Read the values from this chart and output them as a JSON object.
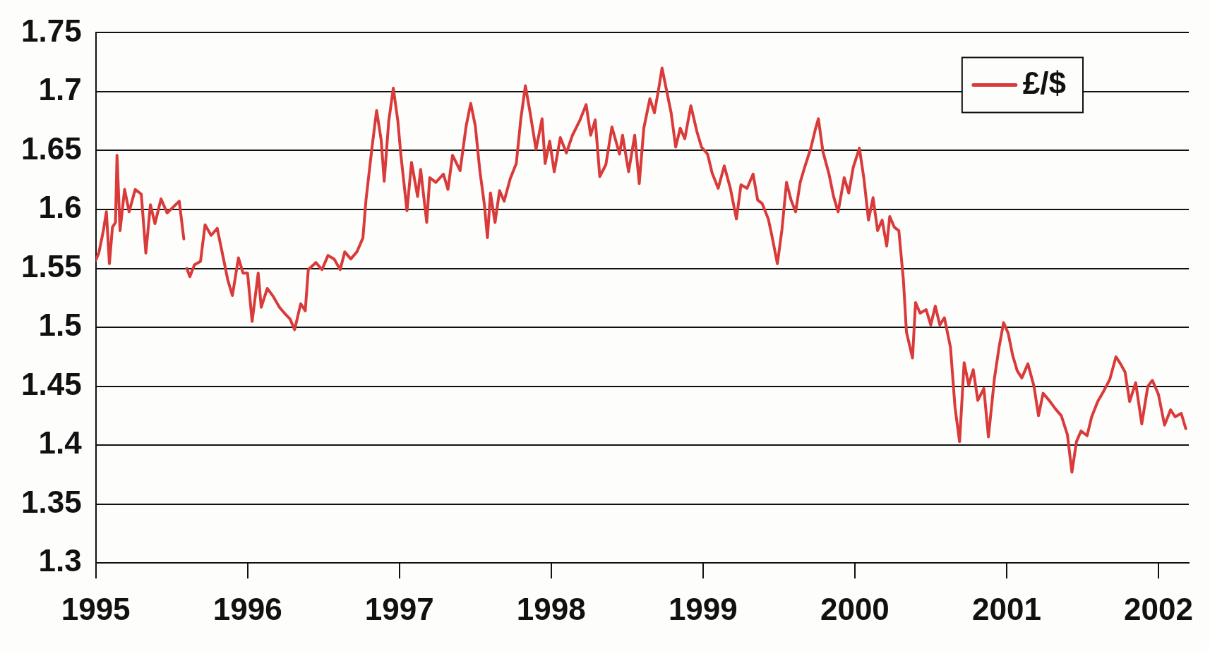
{
  "chart_data": {
    "type": "line",
    "legend": "top right",
    "grid": "y",
    "marker": "none",
    "line_style": "solid",
    "xlim": [
      1995,
      2002.2
    ],
    "xticks": [
      1995,
      1996,
      1997,
      1998,
      1999,
      2000,
      2001,
      2002
    ],
    "ylim": [
      1.3,
      1.75
    ],
    "yticks": [
      1.3,
      1.35,
      1.4,
      1.45,
      1.5,
      1.55,
      1.6,
      1.65,
      1.7,
      1.75
    ],
    "series": [
      {
        "name": "£/$",
        "color": "#d93a3a",
        "x": [
          1995.0,
          1995.02,
          1995.05,
          1995.07,
          1995.09,
          1995.11,
          1995.13,
          1995.14,
          1995.16,
          1995.19,
          1995.22,
          1995.26,
          1995.3,
          1995.33,
          1995.36,
          1995.39,
          1995.43,
          1995.47,
          1995.51,
          1995.55,
          1995.58,
          1995.59,
          1995.6,
          1995.62,
          1995.65,
          1995.69,
          1995.72,
          1995.76,
          1995.8,
          1995.84,
          1995.87,
          1995.9,
          1995.94,
          1995.97,
          1996.0,
          1996.03,
          1996.07,
          1996.09,
          1996.13,
          1996.17,
          1996.21,
          1996.25,
          1996.28,
          1996.31,
          1996.35,
          1996.38,
          1996.4,
          1996.45,
          1996.49,
          1996.53,
          1996.57,
          1996.61,
          1996.64,
          1996.68,
          1996.72,
          1996.76,
          1996.78,
          1996.82,
          1996.85,
          1996.88,
          1996.9,
          1996.93,
          1996.96,
          1996.99,
          1997.01,
          1997.05,
          1997.08,
          1997.12,
          1997.14,
          1997.18,
          1997.2,
          1997.24,
          1997.29,
          1997.32,
          1997.35,
          1997.4,
          1997.44,
          1997.47,
          1997.5,
          1997.53,
          1997.56,
          1997.58,
          1997.6,
          1997.63,
          1997.66,
          1997.69,
          1997.73,
          1997.77,
          1997.8,
          1997.83,
          1997.86,
          1997.9,
          1997.94,
          1997.96,
          1997.99,
          1998.02,
          1998.06,
          1998.1,
          1998.14,
          1998.19,
          1998.23,
          1998.26,
          1998.29,
          1998.32,
          1998.36,
          1998.4,
          1998.45,
          1998.47,
          1998.51,
          1998.55,
          1998.58,
          1998.61,
          1998.65,
          1998.68,
          1998.71,
          1998.73,
          1998.76,
          1998.79,
          1998.82,
          1998.85,
          1998.88,
          1998.92,
          1998.96,
          1998.99,
          1999.03,
          1999.06,
          1999.1,
          1999.14,
          1999.18,
          1999.22,
          1999.25,
          1999.29,
          1999.33,
          1999.36,
          1999.39,
          1999.43,
          1999.45,
          1999.49,
          1999.52,
          1999.55,
          1999.58,
          1999.61,
          1999.64,
          1999.67,
          1999.71,
          1999.74,
          1999.76,
          1999.79,
          1999.83,
          1999.86,
          1999.89,
          1999.93,
          1999.96,
          1999.99,
          2000.03,
          2000.06,
          2000.09,
          2000.12,
          2000.15,
          2000.18,
          2000.21,
          2000.23,
          2000.26,
          2000.29,
          2000.32,
          2000.34,
          2000.38,
          2000.4,
          2000.43,
          2000.47,
          2000.5,
          2000.53,
          2000.56,
          2000.59,
          2000.63,
          2000.66,
          2000.69,
          2000.72,
          2000.75,
          2000.78,
          2000.81,
          2000.85,
          2000.88,
          2000.92,
          2000.95,
          2000.98,
          2001.01,
          2001.04,
          2001.07,
          2001.1,
          2001.14,
          2001.18,
          2001.21,
          2001.24,
          2001.28,
          2001.32,
          2001.36,
          2001.4,
          2001.43,
          2001.46,
          2001.49,
          2001.53,
          2001.56,
          2001.6,
          2001.64,
          2001.68,
          2001.72,
          2001.75,
          2001.78,
          2001.81,
          2001.85,
          2001.89,
          2001.93,
          2001.96,
          2002.0,
          2002.04,
          2002.08,
          2002.11,
          2002.15,
          2002.18
        ],
        "values": [
          1.557,
          1.563,
          1.582,
          1.598,
          1.554,
          1.585,
          1.589,
          1.646,
          1.582,
          1.617,
          1.598,
          1.617,
          1.613,
          1.563,
          1.604,
          1.588,
          1.609,
          1.597,
          1.602,
          1.607,
          1.575,
          null,
          1.55,
          1.543,
          1.553,
          1.556,
          1.587,
          1.578,
          1.584,
          1.559,
          1.54,
          1.527,
          1.559,
          1.546,
          1.546,
          1.505,
          1.546,
          1.517,
          1.533,
          1.526,
          1.517,
          1.511,
          1.507,
          1.498,
          1.52,
          1.514,
          1.549,
          1.555,
          1.549,
          1.561,
          1.558,
          1.549,
          1.564,
          1.558,
          1.564,
          1.576,
          1.608,
          1.653,
          1.684,
          1.659,
          1.624,
          1.675,
          1.703,
          1.675,
          1.646,
          1.599,
          1.64,
          1.611,
          1.634,
          1.589,
          1.627,
          1.623,
          1.63,
          1.617,
          1.646,
          1.633,
          1.671,
          1.69,
          1.671,
          1.633,
          1.604,
          1.576,
          1.614,
          1.589,
          1.616,
          1.607,
          1.626,
          1.639,
          1.677,
          1.705,
          1.683,
          1.651,
          1.677,
          1.639,
          1.658,
          1.632,
          1.661,
          1.648,
          1.663,
          1.676,
          1.689,
          1.663,
          1.676,
          1.628,
          1.638,
          1.67,
          1.647,
          1.663,
          1.632,
          1.663,
          1.622,
          1.669,
          1.694,
          1.682,
          1.704,
          1.72,
          1.701,
          1.682,
          1.653,
          1.669,
          1.66,
          1.688,
          1.666,
          1.653,
          1.647,
          1.631,
          1.618,
          1.637,
          1.618,
          1.592,
          1.621,
          1.618,
          1.63,
          1.608,
          1.605,
          1.592,
          1.58,
          1.554,
          1.583,
          1.623,
          1.608,
          1.598,
          1.623,
          1.636,
          1.652,
          1.668,
          1.677,
          1.649,
          1.63,
          1.611,
          1.598,
          1.627,
          1.614,
          1.636,
          1.652,
          1.626,
          1.591,
          1.61,
          1.582,
          1.591,
          1.569,
          1.594,
          1.585,
          1.582,
          1.54,
          1.496,
          1.474,
          1.521,
          1.512,
          1.515,
          1.502,
          1.518,
          1.502,
          1.508,
          1.483,
          1.432,
          1.403,
          1.47,
          1.451,
          1.464,
          1.438,
          1.448,
          1.407,
          1.457,
          1.483,
          1.504,
          1.495,
          1.476,
          1.463,
          1.457,
          1.469,
          1.45,
          1.425,
          1.444,
          1.438,
          1.431,
          1.425,
          1.409,
          1.377,
          1.403,
          1.412,
          1.408,
          1.424,
          1.437,
          1.446,
          1.456,
          1.475,
          1.469,
          1.462,
          1.437,
          1.453,
          1.418,
          1.45,
          1.455,
          1.443,
          1.417,
          1.43,
          1.424,
          1.427,
          1.414
        ]
      }
    ]
  }
}
